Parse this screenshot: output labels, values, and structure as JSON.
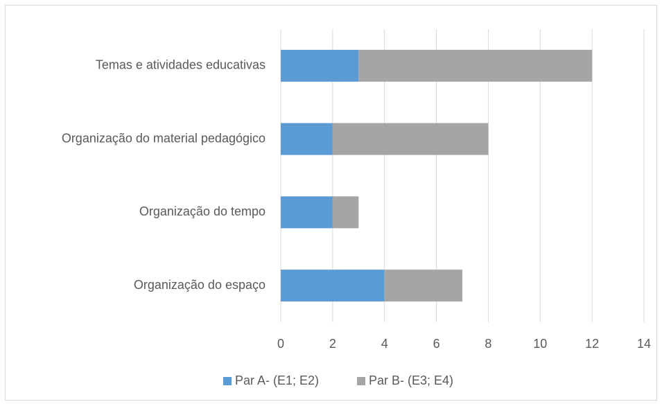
{
  "chart_data": {
    "type": "stacked_barh",
    "categories": [
      "Temas e atividades educativas",
      "Organização do material pedagógico",
      "Organização do tempo",
      "Organização do espaço"
    ],
    "series": [
      {
        "name": "Par A- (E1; E2)",
        "color": "#5b9bd5",
        "values": [
          3,
          2,
          2,
          4
        ]
      },
      {
        "name": "Par B- (E3; E4)",
        "color": "#a5a5a5",
        "values": [
          9,
          6,
          1,
          3
        ]
      }
    ],
    "xlim": [
      0,
      14
    ],
    "xticks": [
      0,
      2,
      4,
      6,
      8,
      10,
      12,
      14
    ],
    "grid": true,
    "legend": "bottom"
  }
}
